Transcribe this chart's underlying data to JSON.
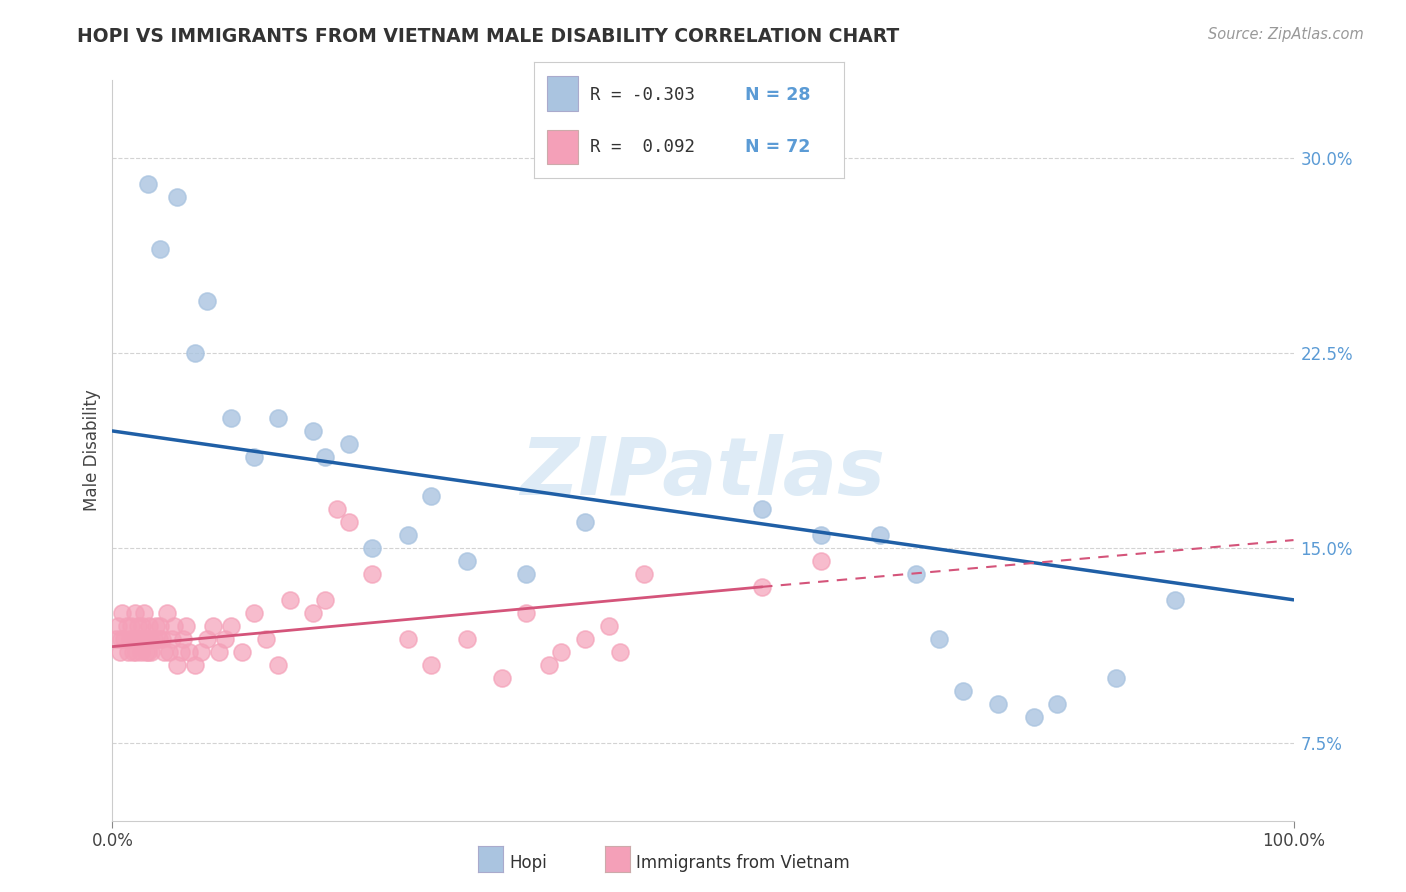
{
  "title": "HOPI VS IMMIGRANTS FROM VIETNAM MALE DISABILITY CORRELATION CHART",
  "source": "Source: ZipAtlas.com",
  "ylabel": "Male Disability",
  "xlim": [
    0.0,
    100.0
  ],
  "ylim": [
    4.5,
    33.0
  ],
  "xticks": [
    0.0,
    100.0
  ],
  "xtick_labels": [
    "0.0%",
    "100.0%"
  ],
  "yticks": [
    7.5,
    15.0,
    22.5,
    30.0
  ],
  "ytick_labels": [
    "7.5%",
    "15.0%",
    "22.5%",
    "30.0%"
  ],
  "legend_R_hopi": "-0.303",
  "legend_N_hopi": "28",
  "legend_R_vietnam": " 0.092",
  "legend_N_vietnam": "72",
  "hopi_color": "#aac4e0",
  "vietnam_color": "#f4a0b8",
  "trend_hopi_color": "#1f5fa6",
  "trend_vietnam_color": "#d4547a",
  "watermark": "ZIPatlas",
  "watermark_color": "#c8dff0",
  "background_color": "#ffffff",
  "grid_color": "#c8c8c8",
  "tick_color": "#5b9bd5",
  "hopi_x": [
    3.0,
    4.0,
    5.5,
    7.0,
    8.0,
    10.0,
    12.0,
    14.0,
    17.0,
    18.0,
    20.0,
    22.0,
    25.0,
    27.0,
    30.0,
    35.0,
    40.0,
    55.0,
    60.0,
    65.0,
    68.0,
    70.0,
    72.0,
    75.0,
    78.0,
    80.0,
    85.0,
    90.0
  ],
  "hopi_y": [
    29.0,
    26.5,
    28.5,
    22.5,
    24.5,
    20.0,
    18.5,
    20.0,
    19.5,
    18.5,
    19.0,
    15.0,
    15.5,
    17.0,
    14.5,
    14.0,
    16.0,
    16.5,
    15.5,
    15.5,
    14.0,
    11.5,
    9.5,
    9.0,
    8.5,
    9.0,
    10.0,
    13.0
  ],
  "vietnam_x": [
    0.3,
    0.5,
    0.6,
    0.7,
    0.8,
    1.0,
    1.2,
    1.3,
    1.5,
    1.6,
    1.7,
    1.8,
    1.9,
    2.0,
    2.1,
    2.2,
    2.3,
    2.4,
    2.5,
    2.6,
    2.7,
    2.8,
    2.9,
    3.0,
    3.1,
    3.2,
    3.3,
    3.5,
    3.7,
    3.9,
    4.0,
    4.2,
    4.4,
    4.6,
    4.8,
    5.0,
    5.2,
    5.5,
    5.8,
    6.0,
    6.2,
    6.5,
    7.0,
    7.5,
    8.0,
    8.5,
    9.0,
    9.5,
    10.0,
    11.0,
    12.0,
    13.0,
    14.0,
    15.0,
    17.0,
    18.0,
    19.0,
    20.0,
    22.0,
    25.0,
    27.0,
    30.0,
    33.0,
    35.0,
    37.0,
    38.0,
    40.0,
    42.0,
    43.0,
    45.0,
    55.0,
    60.0
  ],
  "vietnam_y": [
    11.5,
    12.0,
    11.0,
    11.5,
    12.5,
    11.5,
    12.0,
    11.0,
    11.5,
    12.0,
    11.0,
    11.5,
    12.5,
    11.0,
    11.5,
    12.0,
    11.5,
    11.0,
    12.0,
    11.5,
    12.5,
    11.0,
    11.5,
    11.0,
    12.0,
    11.5,
    11.0,
    11.5,
    12.0,
    11.5,
    12.0,
    11.5,
    11.0,
    12.5,
    11.0,
    11.5,
    12.0,
    10.5,
    11.0,
    11.5,
    12.0,
    11.0,
    10.5,
    11.0,
    11.5,
    12.0,
    11.0,
    11.5,
    12.0,
    11.0,
    12.5,
    11.5,
    10.5,
    13.0,
    12.5,
    13.0,
    16.5,
    16.0,
    14.0,
    11.5,
    10.5,
    11.5,
    10.0,
    12.5,
    10.5,
    11.0,
    11.5,
    12.0,
    11.0,
    14.0,
    13.5,
    14.5
  ],
  "trend_hopi_x0": 0.0,
  "trend_hopi_y0": 19.5,
  "trend_hopi_x1": 100.0,
  "trend_hopi_y1": 13.0,
  "trend_vietnam_solid_x0": 0.0,
  "trend_vietnam_solid_y0": 11.2,
  "trend_vietnam_solid_x1": 55.0,
  "trend_vietnam_solid_y1": 13.5,
  "trend_vietnam_dash_x0": 55.0,
  "trend_vietnam_dash_y0": 13.5,
  "trend_vietnam_dash_x1": 100.0,
  "trend_vietnam_dash_y1": 15.3
}
